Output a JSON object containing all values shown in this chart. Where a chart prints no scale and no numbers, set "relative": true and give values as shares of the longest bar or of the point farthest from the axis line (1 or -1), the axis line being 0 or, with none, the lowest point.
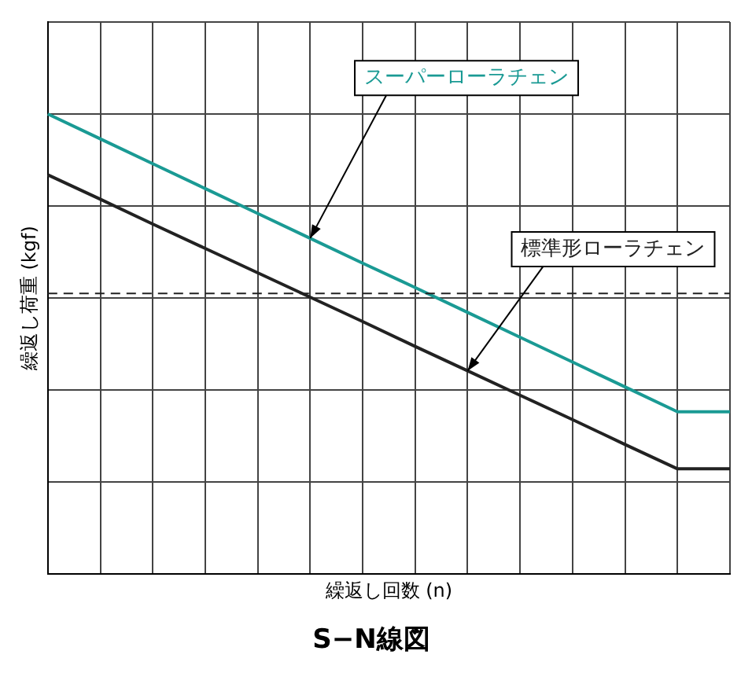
{
  "chart_data": {
    "type": "line",
    "title": "S−N線図",
    "xlabel": "繰返し回数 (n)",
    "ylabel": "繰返し荷重 (kgf)",
    "relative": true,
    "grid": true,
    "legend": false,
    "marker": "none",
    "line_style": "solid",
    "categories": [
      null,
      null,
      null,
      null,
      null,
      null,
      null,
      null,
      null,
      null,
      null,
      null,
      null,
      null
    ],
    "series": [
      {
        "name": "スーパーローラチェン",
        "color": "#1a9a94",
        "values": [
          1.0,
          0.946,
          0.892,
          0.838,
          0.784,
          0.73,
          0.676,
          0.623,
          0.569,
          0.515,
          0.461,
          0.407,
          0.353,
          0.353
        ]
      },
      {
        "name": "標準形ローラチェン",
        "color": "#222222",
        "values": [
          0.868,
          0.815,
          0.761,
          0.708,
          0.655,
          0.602,
          0.549,
          0.495,
          0.442,
          0.389,
          0.336,
          0.282,
          0.229,
          0.229
        ]
      }
    ],
    "ref_lines": [
      {
        "axis": "y",
        "value": 0.61,
        "line_style": "dashed",
        "color": "#222222"
      }
    ]
  }
}
